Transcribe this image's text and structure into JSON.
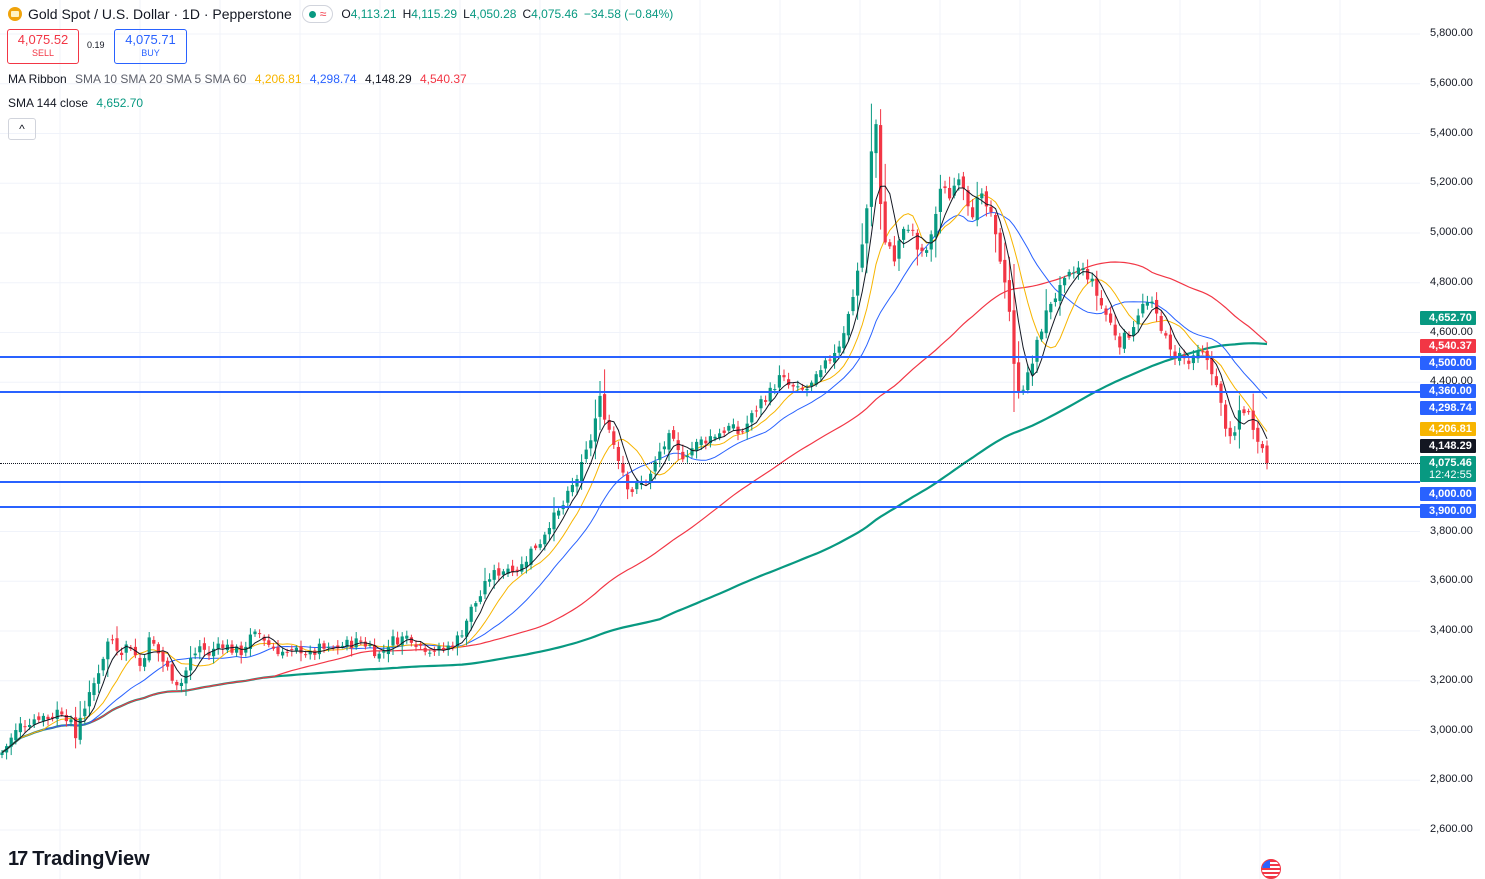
{
  "header": {
    "symbol": "Gold Spot / U.S. Dollar · 1D · Pepperstone",
    "ohlc": [
      {
        "k": "O",
        "v": "4,113.21"
      },
      {
        "k": "H",
        "v": "4,115.29"
      },
      {
        "k": "L",
        "v": "4,050.28"
      },
      {
        "k": "C",
        "v": "4,075.46"
      },
      {
        "k": "",
        "v": "−34.58 (−0.84%)"
      }
    ],
    "status_icon": "market-open-dot",
    "wave_icon": "≈"
  },
  "trade": {
    "sell_price": "4,075.52",
    "sell_label": "SELL",
    "buy_price": "4,075.71",
    "buy_label": "BUY",
    "spread": "0.19"
  },
  "indicators": {
    "ma_ribbon_label": "MA Ribbon",
    "ma_ribbon_params": "SMA 10 SMA 20 SMA 5 SMA 60",
    "ma_ribbon_values": [
      "4,206.81",
      "4,298.74",
      "4,148.29",
      "4,540.37"
    ],
    "sma144_label": "SMA 144 close",
    "sma144_value": "4,652.70",
    "collapse_icon": "^"
  },
  "branding": {
    "logo_mark": "17",
    "logo_text": "TradingView"
  },
  "colors": {
    "up": "#089981",
    "down": "#f23645",
    "sma10": "#f7b500",
    "sma20": "#2962ff",
    "sma5": "#131722",
    "sma60": "#f23645",
    "sma144": "#089981",
    "level": "#2962ff"
  },
  "chart_data": {
    "type": "candlestick",
    "ylim": [
      2550,
      5900
    ],
    "yticks": [
      "5,800.00",
      "5,600.00",
      "5,400.00",
      "5,200.00",
      "5,000.00",
      "4,800.00",
      "4,600.00",
      "4,400.00",
      "3,800.00",
      "3,600.00",
      "3,400.00",
      "3,200.00",
      "3,000.00",
      "2,800.00",
      "2,600.00"
    ],
    "ytick_values": [
      5800,
      5600,
      5400,
      5200,
      5000,
      4800,
      4600,
      4400,
      3800,
      3600,
      3400,
      3200,
      3000,
      2800,
      2600
    ],
    "close_path": [
      [
        0,
        2900
      ],
      [
        10,
        2960
      ],
      [
        20,
        3020
      ],
      [
        30,
        3040
      ],
      [
        40,
        3060
      ],
      [
        50,
        3050
      ],
      [
        60,
        3090
      ],
      [
        70,
        3040
      ],
      [
        75,
        2960
      ],
      [
        80,
        3060
      ],
      [
        90,
        3140
      ],
      [
        100,
        3260
      ],
      [
        110,
        3380
      ],
      [
        120,
        3320
      ],
      [
        130,
        3350
      ],
      [
        140,
        3260
      ],
      [
        150,
        3370
      ],
      [
        160,
        3300
      ],
      [
        170,
        3230
      ],
      [
        180,
        3180
      ],
      [
        190,
        3280
      ],
      [
        200,
        3340
      ],
      [
        210,
        3300
      ],
      [
        220,
        3360
      ],
      [
        230,
        3330
      ],
      [
        240,
        3310
      ],
      [
        250,
        3370
      ],
      [
        260,
        3390
      ],
      [
        270,
        3340
      ],
      [
        280,
        3320
      ],
      [
        290,
        3300
      ],
      [
        300,
        3330
      ],
      [
        310,
        3300
      ],
      [
        320,
        3330
      ],
      [
        330,
        3320
      ],
      [
        340,
        3340
      ],
      [
        350,
        3350
      ],
      [
        360,
        3360
      ],
      [
        370,
        3340
      ],
      [
        380,
        3300
      ],
      [
        390,
        3360
      ],
      [
        400,
        3370
      ],
      [
        410,
        3380
      ],
      [
        420,
        3340
      ],
      [
        430,
        3330
      ],
      [
        440,
        3320
      ],
      [
        450,
        3340
      ],
      [
        460,
        3380
      ],
      [
        470,
        3480
      ],
      [
        480,
        3540
      ],
      [
        490,
        3620
      ],
      [
        500,
        3640
      ],
      [
        510,
        3660
      ],
      [
        520,
        3650
      ],
      [
        530,
        3720
      ],
      [
        540,
        3760
      ],
      [
        550,
        3840
      ],
      [
        560,
        3880
      ],
      [
        570,
        3960
      ],
      [
        580,
        4040
      ],
      [
        590,
        4160
      ],
      [
        600,
        4330
      ],
      [
        610,
        4200
      ],
      [
        620,
        4080
      ],
      [
        630,
        3960
      ],
      [
        640,
        3990
      ],
      [
        650,
        4020
      ],
      [
        660,
        4120
      ],
      [
        670,
        4180
      ],
      [
        680,
        4100
      ],
      [
        690,
        4130
      ],
      [
        700,
        4160
      ],
      [
        710,
        4180
      ],
      [
        720,
        4200
      ],
      [
        730,
        4220
      ],
      [
        740,
        4190
      ],
      [
        750,
        4250
      ],
      [
        760,
        4320
      ],
      [
        770,
        4360
      ],
      [
        780,
        4420
      ],
      [
        790,
        4380
      ],
      [
        800,
        4360
      ],
      [
        810,
        4380
      ],
      [
        820,
        4430
      ],
      [
        830,
        4500
      ],
      [
        840,
        4560
      ],
      [
        850,
        4690
      ],
      [
        860,
        4900
      ],
      [
        866,
        5050
      ],
      [
        872,
        5350
      ],
      [
        878,
        5480
      ],
      [
        882,
        4940
      ],
      [
        888,
        4980
      ],
      [
        894,
        4880
      ],
      [
        900,
        4980
      ],
      [
        910,
        5040
      ],
      [
        920,
        4900
      ],
      [
        930,
        4950
      ],
      [
        940,
        5180
      ],
      [
        950,
        5150
      ],
      [
        960,
        5250
      ],
      [
        966,
        5150
      ],
      [
        972,
        5080
      ],
      [
        980,
        5150
      ],
      [
        990,
        5080
      ],
      [
        1000,
        4900
      ],
      [
        1008,
        4760
      ],
      [
        1014,
        4460
      ],
      [
        1020,
        4360
      ],
      [
        1030,
        4440
      ],
      [
        1040,
        4600
      ],
      [
        1050,
        4720
      ],
      [
        1060,
        4770
      ],
      [
        1070,
        4830
      ],
      [
        1080,
        4860
      ],
      [
        1090,
        4820
      ],
      [
        1100,
        4720
      ],
      [
        1110,
        4640
      ],
      [
        1120,
        4560
      ],
      [
        1130,
        4600
      ],
      [
        1140,
        4700
      ],
      [
        1150,
        4720
      ],
      [
        1160,
        4640
      ],
      [
        1170,
        4520
      ],
      [
        1180,
        4510
      ],
      [
        1190,
        4470
      ],
      [
        1200,
        4520
      ],
      [
        1210,
        4480
      ],
      [
        1220,
        4320
      ],
      [
        1230,
        4160
      ],
      [
        1236,
        4200
      ],
      [
        1240,
        4300
      ],
      [
        1248,
        4280
      ],
      [
        1254,
        4220
      ],
      [
        1260,
        4160
      ],
      [
        1267,
        4075
      ]
    ],
    "price_labels": [
      {
        "label": "4,652.70",
        "value": 4652.7,
        "color": "#089981"
      },
      {
        "label": "4,540.37",
        "value": 4540.37,
        "color": "#f23645"
      },
      {
        "label": "4,500.00",
        "value": 4500,
        "color": "#2962ff"
      },
      {
        "label": "4,360.00",
        "value": 4360,
        "color": "#2962ff"
      },
      {
        "label": "4,298.74",
        "value": 4298.74,
        "color": "#2962ff"
      },
      {
        "label": "4,206.81",
        "value": 4206.81,
        "color": "#f7b500"
      },
      {
        "label": "4,148.29",
        "value": 4148.29,
        "color": "#131722"
      },
      {
        "label": "4,075.46",
        "sub": "12:42:55",
        "value": 4075.46,
        "color": "#089981"
      },
      {
        "label": "4,000.00",
        "value": 4000,
        "color": "#2962ff"
      },
      {
        "label": "3,900.00",
        "value": 3900,
        "color": "#2962ff"
      }
    ],
    "horizontal_levels": [
      4500,
      4360,
      4000,
      3900
    ],
    "last_price": 4075.46
  }
}
